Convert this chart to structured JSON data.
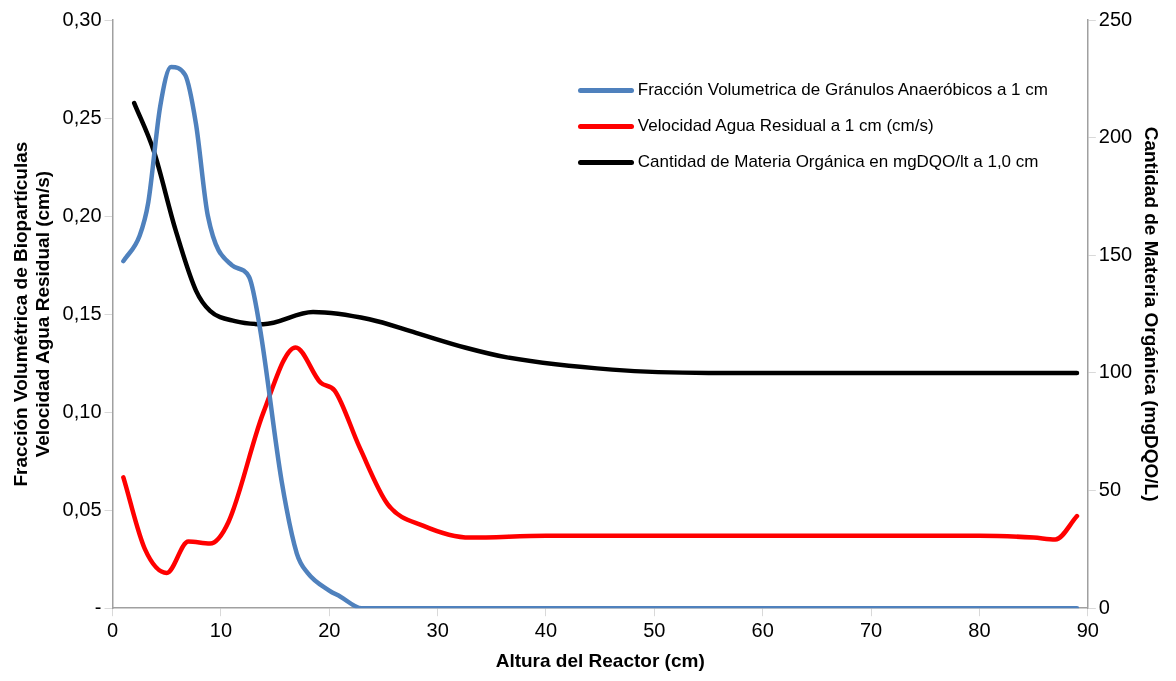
{
  "chart_data": {
    "type": "line",
    "xlabel": "Altura del Reactor (cm)",
    "ylabel": "Fracción Volumétrica de Biopartículas\nVelocidad Agua Residual (cm/s)",
    "y2label": "Cantidad de Materia Orgánica (mgDQO/L)",
    "xlim": [
      0,
      90
    ],
    "xticks": [
      0,
      10,
      20,
      30,
      40,
      50,
      60,
      70,
      80,
      90
    ],
    "ylim": [
      0,
      0.3
    ],
    "yticks": [
      {
        "value": 0,
        "label": "-"
      },
      {
        "value": 0.05,
        "label": "0,05"
      },
      {
        "value": 0.1,
        "label": "0,10"
      },
      {
        "value": 0.15,
        "label": "0,15"
      },
      {
        "value": 0.2,
        "label": "0,20"
      },
      {
        "value": 0.25,
        "label": "0,25"
      },
      {
        "value": 0.3,
        "label": "0,30"
      }
    ],
    "y2lim": [
      0,
      250
    ],
    "y2ticks": [
      0,
      50,
      100,
      150,
      200,
      250
    ],
    "grid": false,
    "legend": "top right",
    "marker": "none",
    "line_style": "solid",
    "series": [
      {
        "name": "Fracción Volumetrica de Gránulos Anaeróbicos a 1 cm",
        "color": "#4f81bd",
        "x": [
          1,
          2.5,
          3.3,
          4.4,
          5.4,
          6.7,
          7.7,
          8.8,
          11,
          12.6,
          13.6,
          15.6,
          17,
          18,
          20,
          21,
          23,
          30,
          40,
          50,
          60,
          70,
          80,
          89
        ],
        "values": [
          0.177,
          0.19,
          0.207,
          0.256,
          0.276,
          0.272,
          0.247,
          0.2,
          0.175,
          0.169,
          0.143,
          0.065,
          0.028,
          0.018,
          0.009,
          0.006,
          0,
          0,
          0,
          0,
          0,
          0,
          0,
          0
        ]
      },
      {
        "name": "Velocidad Agua Residual a 1 cm (cm/s)",
        "color": "#ff0000",
        "x": [
          1,
          3,
          5,
          7,
          9,
          10.7,
          13.9,
          16.9,
          19.2,
          20.5,
          22.8,
          25.4,
          28.7,
          33,
          40,
          50,
          60,
          70,
          80,
          85,
          87,
          89
        ],
        "values": [
          0.0667,
          0.03,
          0.018,
          0.034,
          0.033,
          0.044,
          0.0995,
          0.133,
          0.115,
          0.111,
          0.082,
          0.053,
          0.042,
          0.036,
          0.037,
          0.037,
          0.037,
          0.037,
          0.037,
          0.036,
          0.035,
          0.047
        ]
      },
      {
        "name": "Cantidad de Materia Orgánica en mgDQO/lt a 1,0 cm",
        "color": "#000000",
        "axis": "y2",
        "x": [
          2,
          3.8,
          5.8,
          7.7,
          9,
          11.3,
          13.9,
          18.5,
          23.7,
          28,
          32.6,
          36.4,
          46.1,
          55,
          70,
          89
        ],
        "values": [
          214.7,
          194.4,
          161,
          135,
          126.4,
          122,
          120.7,
          125.9,
          122.8,
          117,
          110.7,
          106.6,
          101.4,
          100,
          100,
          100
        ]
      }
    ]
  }
}
